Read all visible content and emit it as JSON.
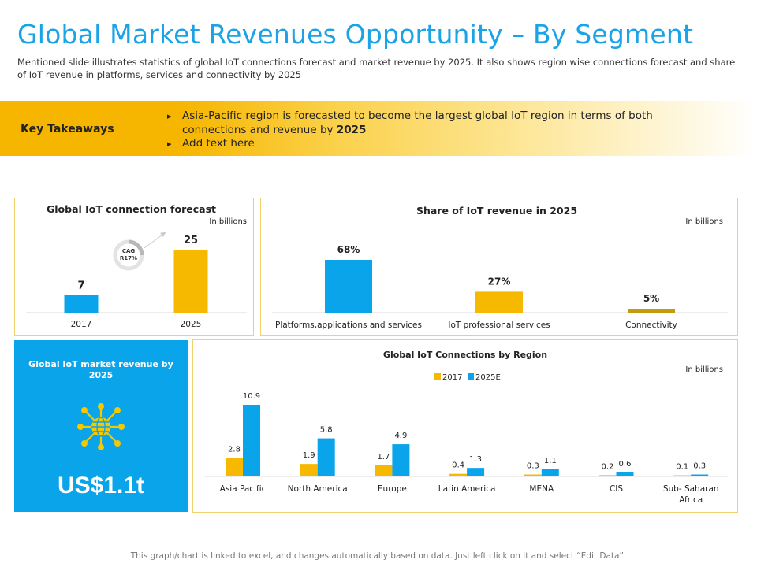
{
  "header": {
    "title": "Global Market Revenues Opportunity – By Segment",
    "subtitle": "Mentioned slide illustrates statistics of global IoT connections  forecast and market revenue by 2025. It also shows region wise connections  forecast and share of IoT revenue in platforms, services and connectivity  by 2025"
  },
  "takeaways": {
    "label": "Key Takeaways",
    "items": [
      {
        "text": "Asia-Pacific region is forecasted to become the largest global IoT region in terms of both connections and revenue by ",
        "bold": "2025"
      },
      {
        "text": "Add text here",
        "bold": ""
      }
    ]
  },
  "market_revenue": {
    "title": "Global  IoT market revenue by 2025",
    "value": "US$1.1t",
    "icon": "globe-network-icon"
  },
  "cagr": {
    "line1": "CAG",
    "line2": "R17%"
  },
  "colors": {
    "yellow": "#f6b900",
    "blue": "#0aa4ea",
    "dark_yellow": "#c49a10",
    "border": "#f2d16b"
  },
  "footnote": "This graph/chart is linked to excel, and changes automatically based on data. Just left click on it and select “Edit Data”.",
  "chart_data": [
    {
      "type": "bar",
      "title": "Global IoT connection forecast",
      "unit": "In billions",
      "categories": [
        "2017",
        "2025"
      ],
      "values": [
        7,
        25
      ],
      "labels": [
        "7",
        "25"
      ],
      "colors": [
        "#0aa4ea",
        "#f6b900"
      ]
    },
    {
      "type": "bar",
      "title": "Share of IoT revenue in 2025",
      "unit": "In billions",
      "categories": [
        "Platforms,applications and services",
        "IoT professional services",
        "Connectivity"
      ],
      "values": [
        68,
        27,
        5
      ],
      "labels": [
        "68%",
        "27%",
        "5%"
      ],
      "colors": [
        "#0aa4ea",
        "#f6b900",
        "#c49a10"
      ]
    },
    {
      "type": "bar",
      "title": "Global  IoT Connections  by Region",
      "unit": "In billions",
      "categories": [
        "Asia Pacific",
        "North America",
        "Europe",
        "Latin America",
        "MENA",
        "CIS",
        "Sub- Saharan Africa"
      ],
      "series": [
        {
          "name": "2017",
          "color": "#f6b900",
          "values": [
            2.8,
            1.9,
            1.7,
            0.4,
            0.3,
            0.2,
            0.1
          ]
        },
        {
          "name": "2025E",
          "color": "#0aa4ea",
          "values": [
            10.9,
            5.8,
            4.9,
            1.3,
            1.1,
            0.6,
            0.3
          ]
        }
      ]
    }
  ]
}
